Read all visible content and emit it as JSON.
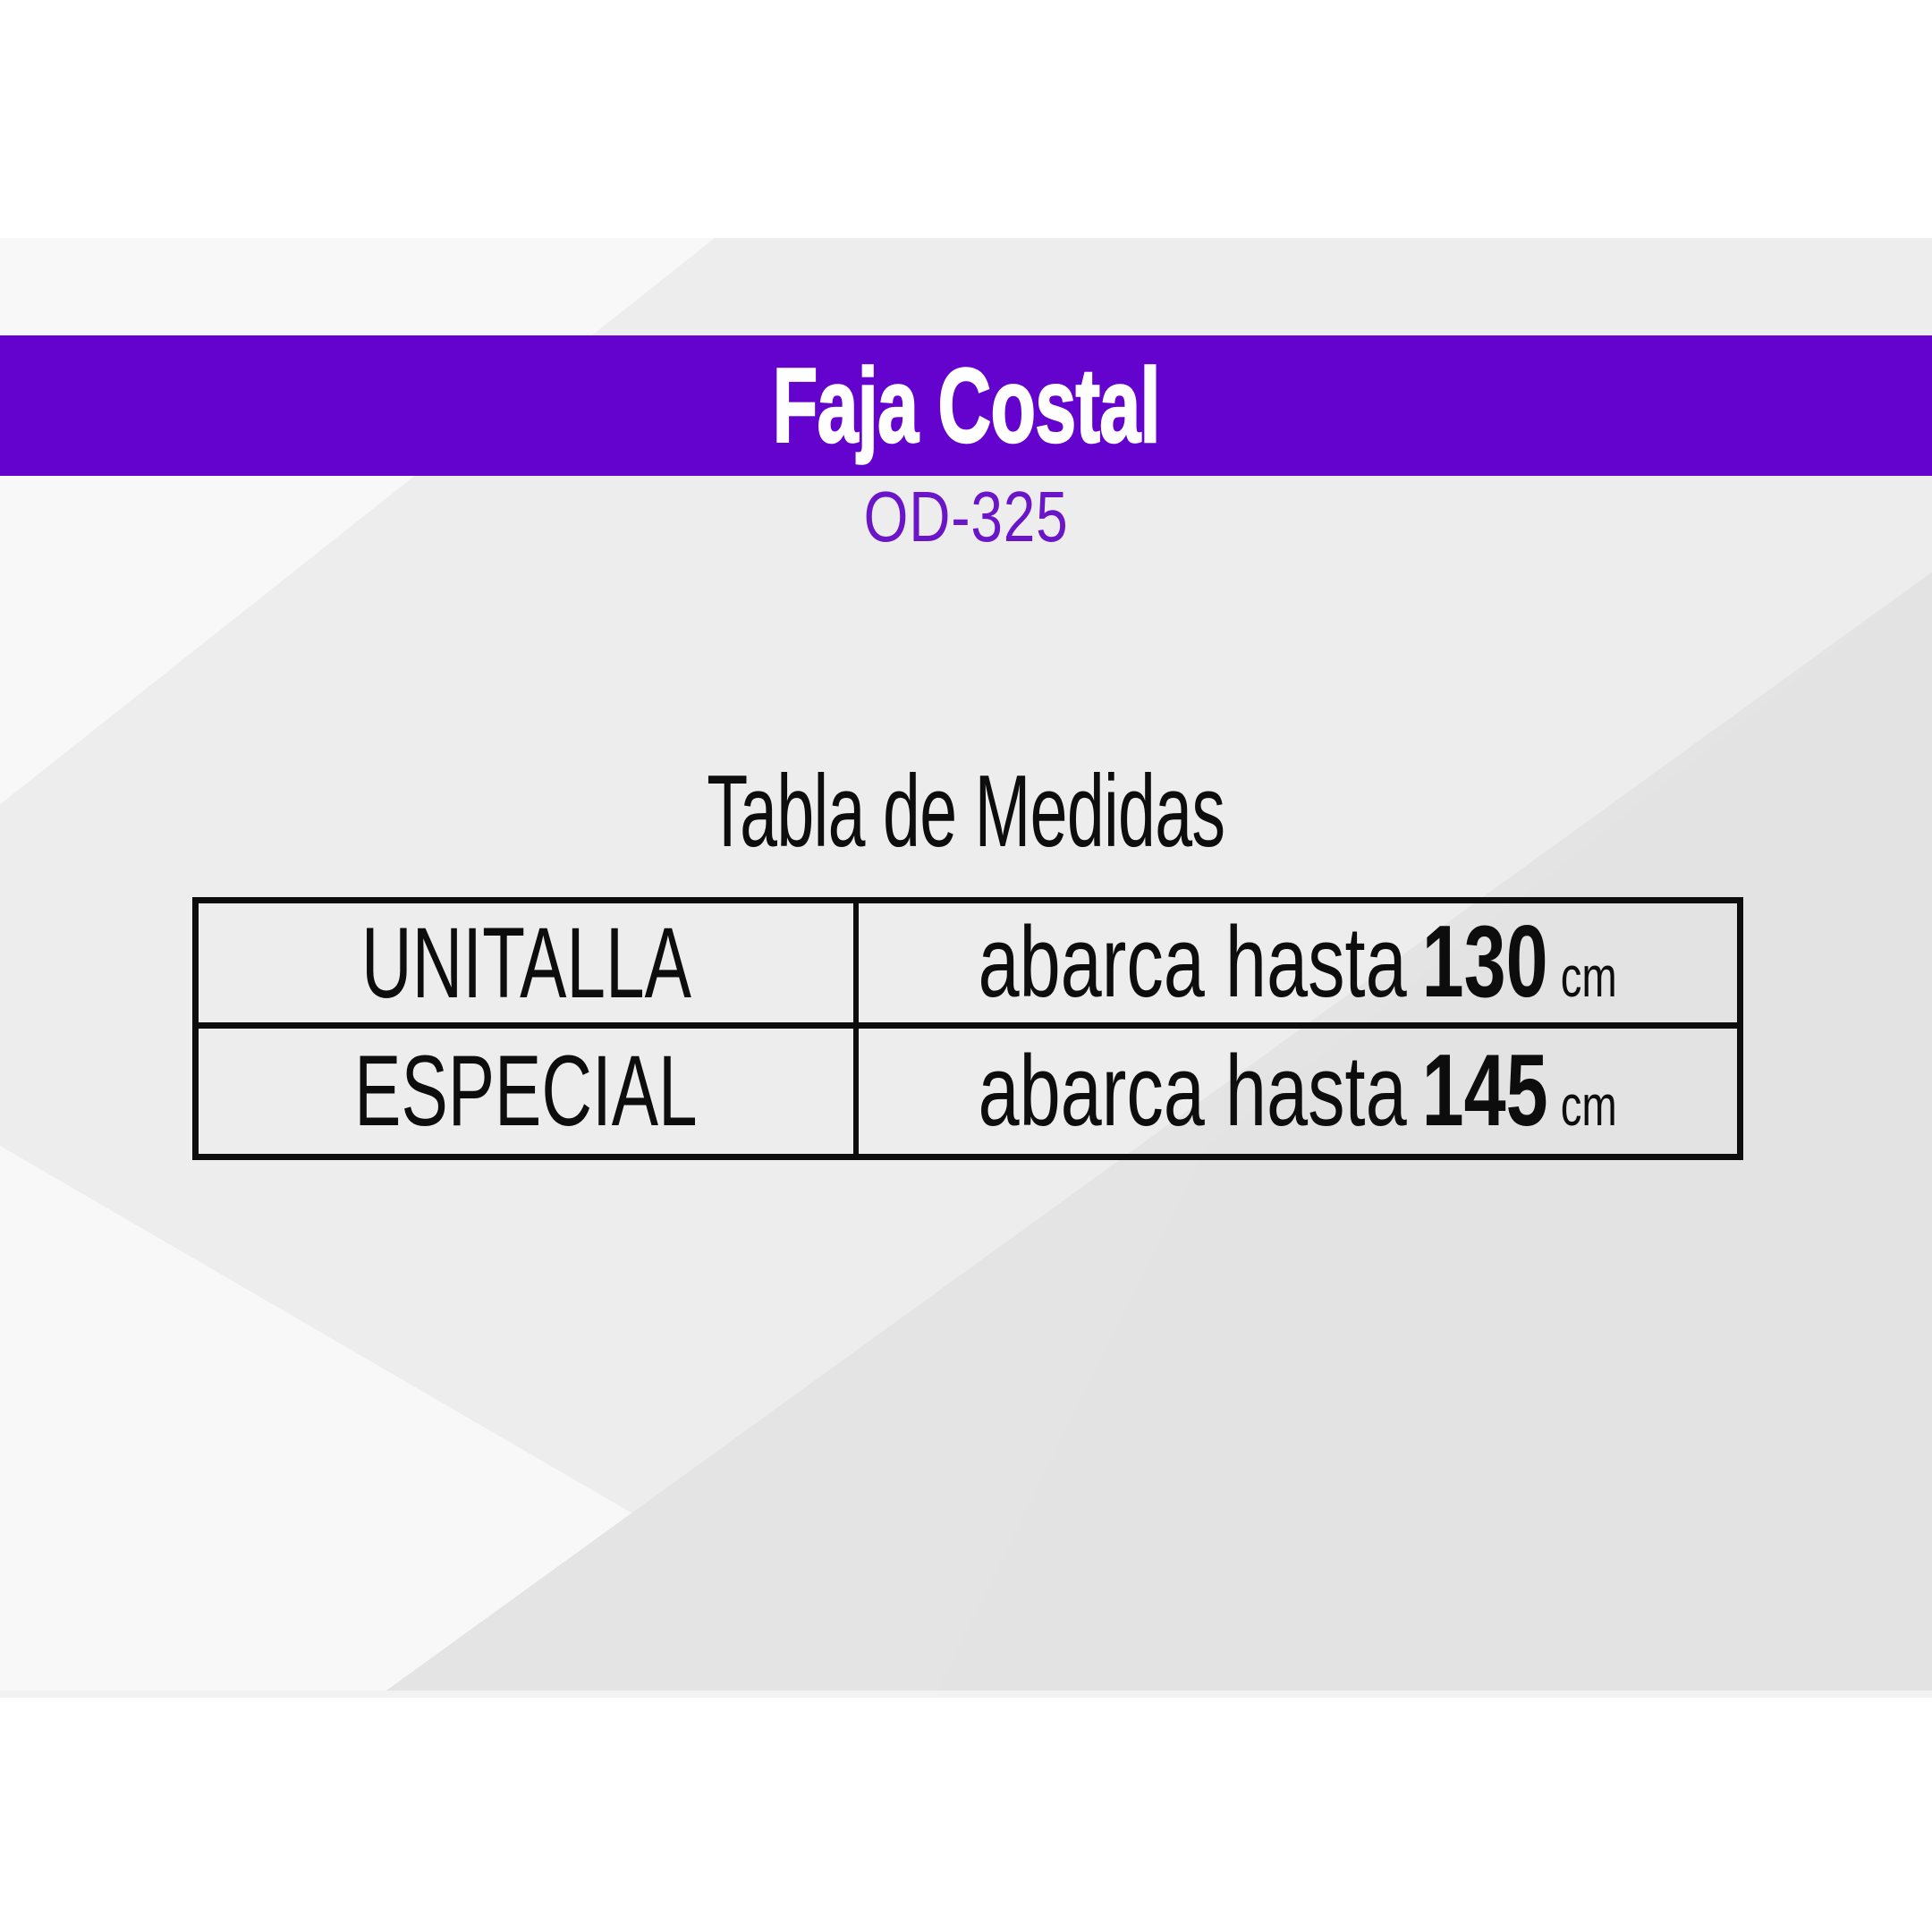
{
  "banner": {
    "title": "Faja Costal",
    "bg_color": "#6503CE",
    "text_color": "#ffffff"
  },
  "product_code": {
    "text": "OD-325",
    "color": "#6B15C9"
  },
  "size_table": {
    "title": "Tabla de Medidas",
    "border_color": "#0d0d0d",
    "columns": [
      "size",
      "coverage"
    ],
    "rows": [
      {
        "size": "UNITALLA",
        "prefix": "abarca hasta",
        "value": "130",
        "unit": "cm"
      },
      {
        "size": "ESPECIAL",
        "prefix": "abarca hasta",
        "value": "145",
        "unit": "cm"
      }
    ]
  }
}
